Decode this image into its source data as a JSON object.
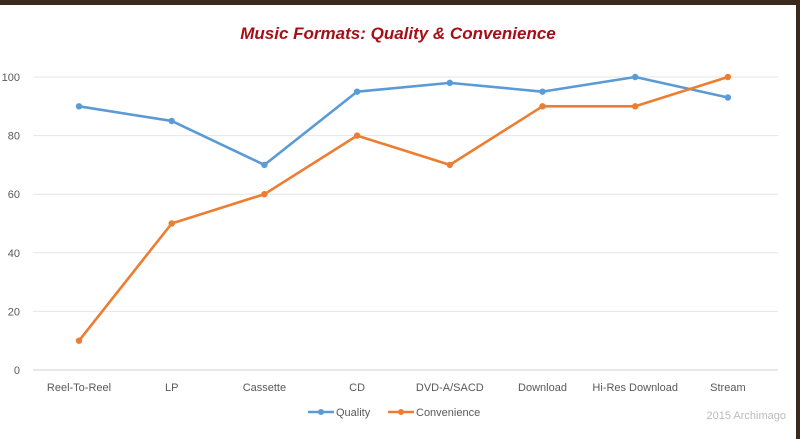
{
  "chart_data": {
    "type": "line",
    "title": "Music Formats: Quality & Convenience",
    "xlabel": "",
    "ylabel": "",
    "ylim": [
      0,
      100
    ],
    "yticks": [
      0,
      20,
      40,
      60,
      80,
      100
    ],
    "grid": true,
    "legend_position": "bottom",
    "categories": [
      "Reel-To-Reel",
      "LP",
      "Cassette",
      "CD",
      "DVD-A/SACD",
      "Download",
      "Hi-Res Download",
      "Stream"
    ],
    "series": [
      {
        "name": "Quality",
        "color": "#5b9bd5",
        "values": [
          90,
          85,
          70,
          95,
          98,
          95,
          100,
          93
        ]
      },
      {
        "name": "Convenience",
        "color": "#ed7d31",
        "values": [
          10,
          50,
          60,
          80,
          70,
          90,
          90,
          100
        ]
      }
    ]
  },
  "watermark": "2015 Archimago"
}
